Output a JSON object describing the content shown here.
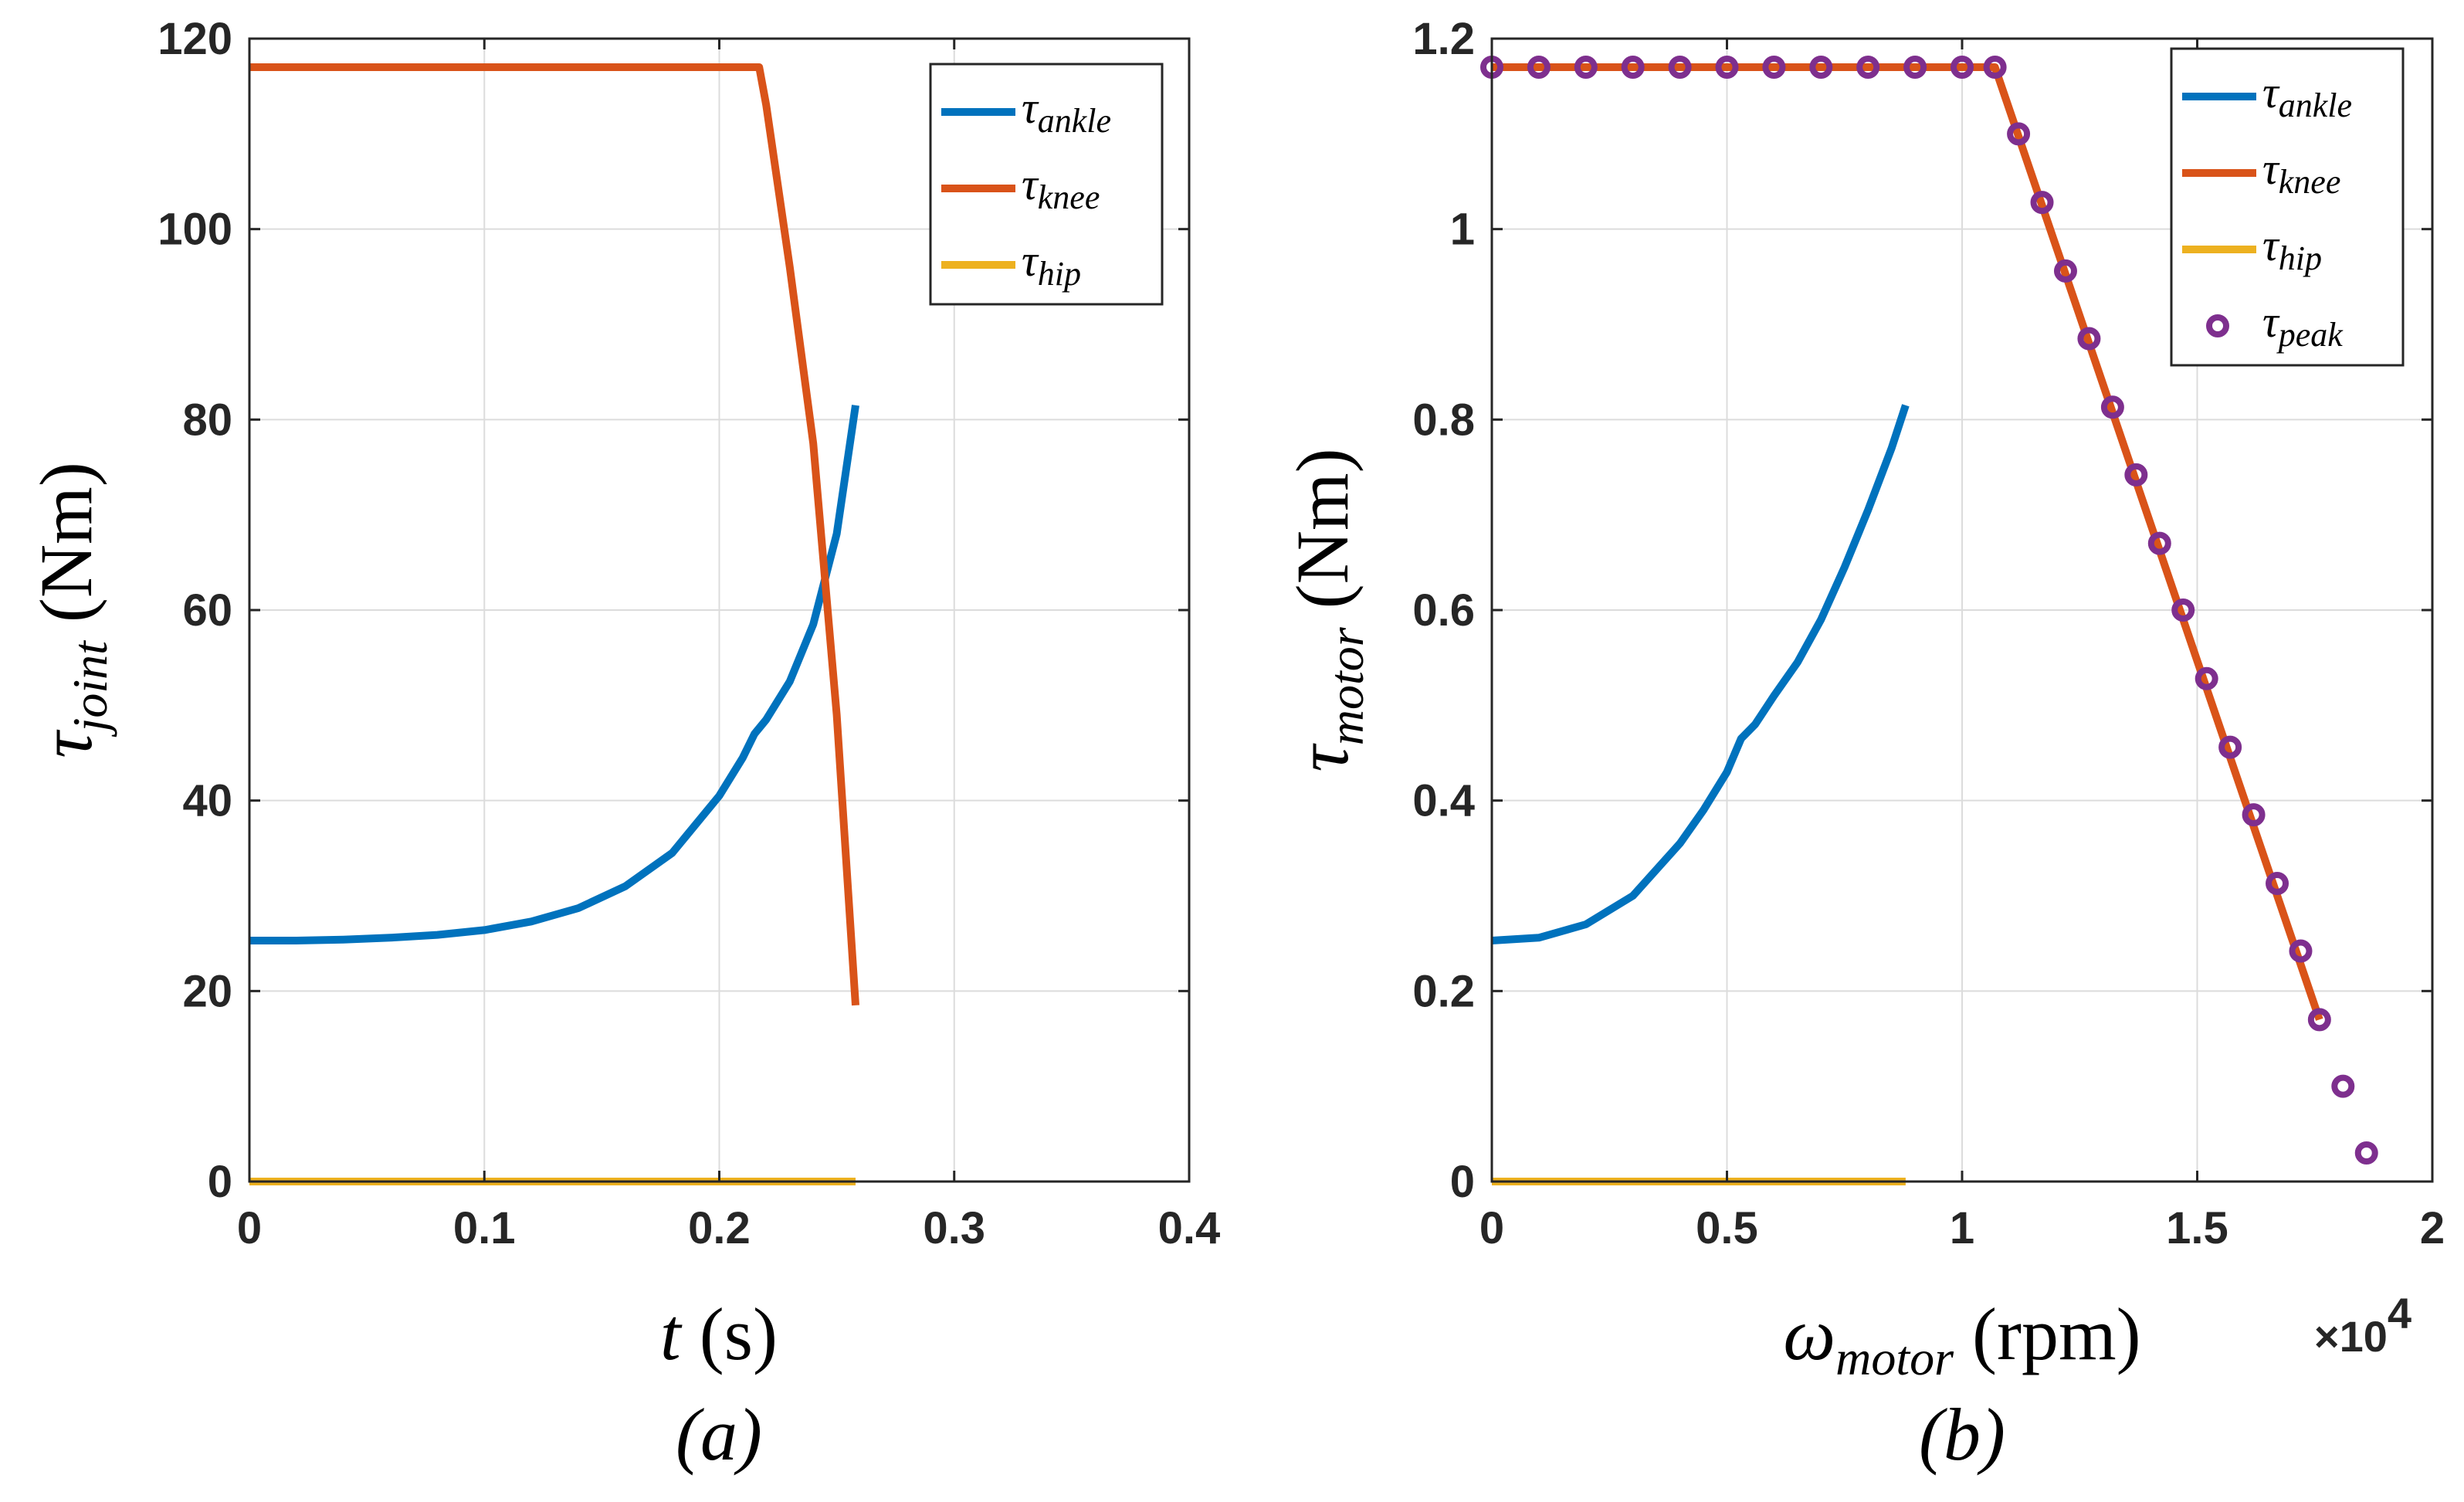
{
  "colors": {
    "ankle": "#0072BD",
    "knee": "#D95319",
    "hip": "#EDB120",
    "peak": "#7E2F8E",
    "grid": "#dcdcdc",
    "axis": "#262626"
  },
  "chart_data": [
    {
      "type": "line",
      "caption": "(a)",
      "xlabel": {
        "symbol": "t",
        "unit": "(s)"
      },
      "ylabel": {
        "symbol": "τ",
        "sub": "joint",
        "unit": "(Nm)"
      },
      "xlim": [
        0,
        0.4
      ],
      "ylim": [
        0,
        120
      ],
      "xticks": [
        0,
        0.1,
        0.2,
        0.3,
        0.4
      ],
      "xtick_labels": [
        "0",
        "0.1",
        "0.2",
        "0.3",
        "0.4"
      ],
      "yticks": [
        0,
        20,
        40,
        60,
        80,
        100,
        120
      ],
      "ytick_labels": [
        "0",
        "20",
        "40",
        "60",
        "80",
        "100",
        "120"
      ],
      "grid": true,
      "legend_position": "top-right",
      "series": [
        {
          "name": "τ",
          "sub": "ankle",
          "color_key": "ankle",
          "x": [
            0,
            0.02,
            0.04,
            0.06,
            0.08,
            0.1,
            0.12,
            0.14,
            0.16,
            0.18,
            0.2,
            0.21,
            0.215,
            0.22,
            0.23,
            0.24,
            0.25,
            0.258
          ],
          "y": [
            25.3,
            25.3,
            25.4,
            25.6,
            25.9,
            26.4,
            27.3,
            28.7,
            31,
            34.5,
            40.5,
            44.5,
            47,
            48.5,
            52.5,
            58.5,
            68,
            81.5
          ]
        },
        {
          "name": "τ",
          "sub": "knee",
          "color_key": "knee",
          "x": [
            0,
            0.217,
            0.22,
            0.23,
            0.24,
            0.25,
            0.258
          ],
          "y": [
            117,
            117,
            113,
            96,
            77.5,
            49,
            18.5
          ]
        },
        {
          "name": "τ",
          "sub": "hip",
          "color_key": "hip",
          "x": [
            0,
            0.258
          ],
          "y": [
            0,
            0
          ]
        }
      ]
    },
    {
      "type": "line",
      "caption": "(b)",
      "xlabel": {
        "symbol": "ω",
        "sub": "motor",
        "unit": "(rpm)"
      },
      "ylabel": {
        "symbol": "τ",
        "sub": "motor",
        "unit": "(Nm)"
      },
      "xlim": [
        0,
        20000
      ],
      "ylim": [
        0,
        1.2
      ],
      "xticks": [
        0,
        5000,
        10000,
        15000,
        20000
      ],
      "xtick_labels": [
        "0",
        "0.5",
        "1",
        "1.5",
        "2"
      ],
      "x_multiplier": {
        "base": "×10",
        "exp": "4"
      },
      "yticks": [
        0,
        0.2,
        0.4,
        0.6,
        0.8,
        1.0,
        1.2
      ],
      "ytick_labels": [
        "0",
        "0.2",
        "0.4",
        "0.6",
        "0.8",
        "1",
        "1.2"
      ],
      "grid": true,
      "legend_position": "top-right",
      "series": [
        {
          "name": "τ",
          "sub": "ankle",
          "color_key": "ankle",
          "x": [
            0,
            1000,
            2000,
            3000,
            4000,
            4500,
            5000,
            5300,
            5600,
            6000,
            6500,
            7000,
            7500,
            8000,
            8500,
            8800
          ],
          "y": [
            0.253,
            0.256,
            0.27,
            0.3,
            0.355,
            0.39,
            0.43,
            0.465,
            0.48,
            0.51,
            0.545,
            0.59,
            0.645,
            0.705,
            0.77,
            0.815
          ]
        },
        {
          "name": "τ",
          "sub": "knee",
          "color_key": "knee",
          "x": [
            0,
            10700,
            17600
          ],
          "y": [
            1.17,
            1.17,
            0.17
          ]
        },
        {
          "name": "τ",
          "sub": "hip",
          "color_key": "hip",
          "x": [
            0,
            8800
          ],
          "y": [
            0,
            0
          ]
        },
        {
          "name": "τ",
          "sub": "peak",
          "color_key": "peak",
          "marker": "o",
          "x": [
            0,
            1000,
            2000,
            3000,
            4000,
            5000,
            6000,
            7000,
            8000,
            9000,
            10000,
            10700,
            11200,
            11700,
            12200,
            12700,
            13200,
            13700,
            14200,
            14700,
            15200,
            15700,
            16200,
            16700,
            17200,
            17600,
            18100,
            18600
          ],
          "y": [
            1.17,
            1.17,
            1.17,
            1.17,
            1.17,
            1.17,
            1.17,
            1.17,
            1.17,
            1.17,
            1.17,
            1.17,
            1.1,
            1.028,
            0.956,
            0.885,
            0.813,
            0.742,
            0.67,
            0.6,
            0.528,
            0.456,
            0.385,
            0.313,
            0.242,
            0.17,
            0.1,
            0.03
          ]
        }
      ]
    }
  ]
}
